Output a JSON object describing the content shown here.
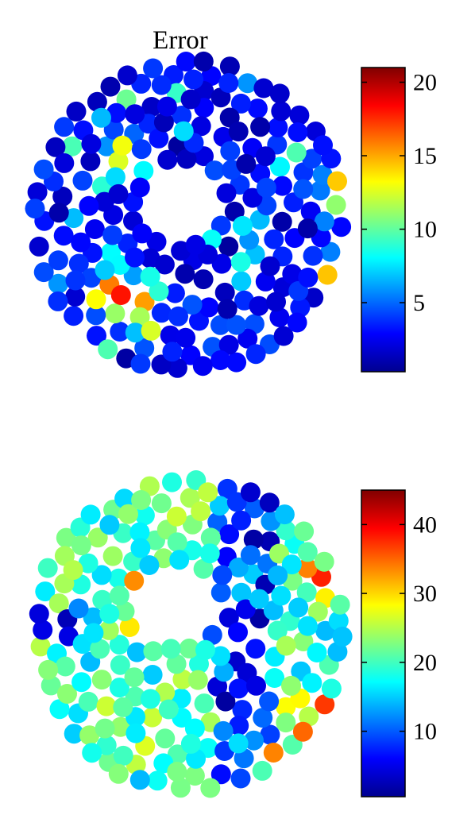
{
  "chart_data": [
    {
      "type": "scatter",
      "title": "Error",
      "colormap": "jet",
      "marker": "filled-circle",
      "shape": "annulus",
      "colorbar": {
        "ticks": [
          5,
          10,
          15,
          20
        ],
        "tick_labels": [
          "5",
          "10",
          "15",
          "20"
        ],
        "clim": [
          0.3,
          21
        ],
        "placement": "right"
      },
      "value_range": [
        0.3,
        21
      ],
      "hotspots": [
        {
          "x": -0.38,
          "y": 0.32,
          "value": 19
        },
        {
          "x": -0.42,
          "y": -0.55,
          "value": 21
        },
        {
          "x": -0.33,
          "y": -0.57,
          "value": 20
        },
        {
          "x": -0.5,
          "y": -0.45,
          "value": 16
        },
        {
          "x": -0.28,
          "y": -0.48,
          "value": 19
        },
        {
          "x": -0.55,
          "y": -0.52,
          "value": 15
        },
        {
          "x": -0.45,
          "y": -0.4,
          "value": 15
        },
        {
          "x": 0.95,
          "y": -0.35,
          "value": 19
        },
        {
          "x": 0.96,
          "y": 0.2,
          "value": 15
        },
        {
          "x": 0.93,
          "y": 0.05,
          "value": 12
        },
        {
          "x": -0.42,
          "y": 0.45,
          "value": 13
        },
        {
          "x": -0.25,
          "y": -0.72,
          "value": 13
        }
      ]
    },
    {
      "type": "scatter",
      "title": "",
      "colormap": "jet",
      "marker": "filled-circle",
      "shape": "annulus",
      "colorbar": {
        "ticks": [
          10,
          20,
          30,
          40
        ],
        "tick_labels": [
          "10",
          "20",
          "30",
          "40"
        ],
        "clim": [
          0.5,
          45
        ],
        "placement": "right"
      },
      "value_range": [
        0.5,
        45
      ],
      "hotspots": [
        {
          "x": 0.8,
          "y": 0.45,
          "value": 38
        },
        {
          "x": 0.85,
          "y": 0.33,
          "value": 44
        },
        {
          "x": 0.93,
          "y": 0.28,
          "value": 40
        },
        {
          "x": 0.9,
          "y": 0.18,
          "value": 36
        },
        {
          "x": 0.73,
          "y": 0.38,
          "value": 32
        },
        {
          "x": 0.65,
          "y": -0.5,
          "value": 32
        },
        {
          "x": 0.73,
          "y": -0.6,
          "value": 37
        },
        {
          "x": 0.85,
          "y": -0.55,
          "value": 40
        },
        {
          "x": 0.88,
          "y": -0.43,
          "value": 38
        },
        {
          "x": 0.7,
          "y": -0.38,
          "value": 32
        },
        {
          "x": 0.5,
          "y": -0.78,
          "value": 44
        },
        {
          "x": -0.35,
          "y": 0.36,
          "value": 34
        },
        {
          "x": -0.35,
          "y": 0.08,
          "value": 33
        },
        {
          "x": -0.55,
          "y": 0.55,
          "value": 28
        },
        {
          "x": -0.72,
          "y": 0.62,
          "value": 30
        },
        {
          "x": -0.25,
          "y": -0.72,
          "value": 28
        },
        {
          "x": -0.33,
          "y": -0.82,
          "value": 26
        }
      ]
    }
  ]
}
